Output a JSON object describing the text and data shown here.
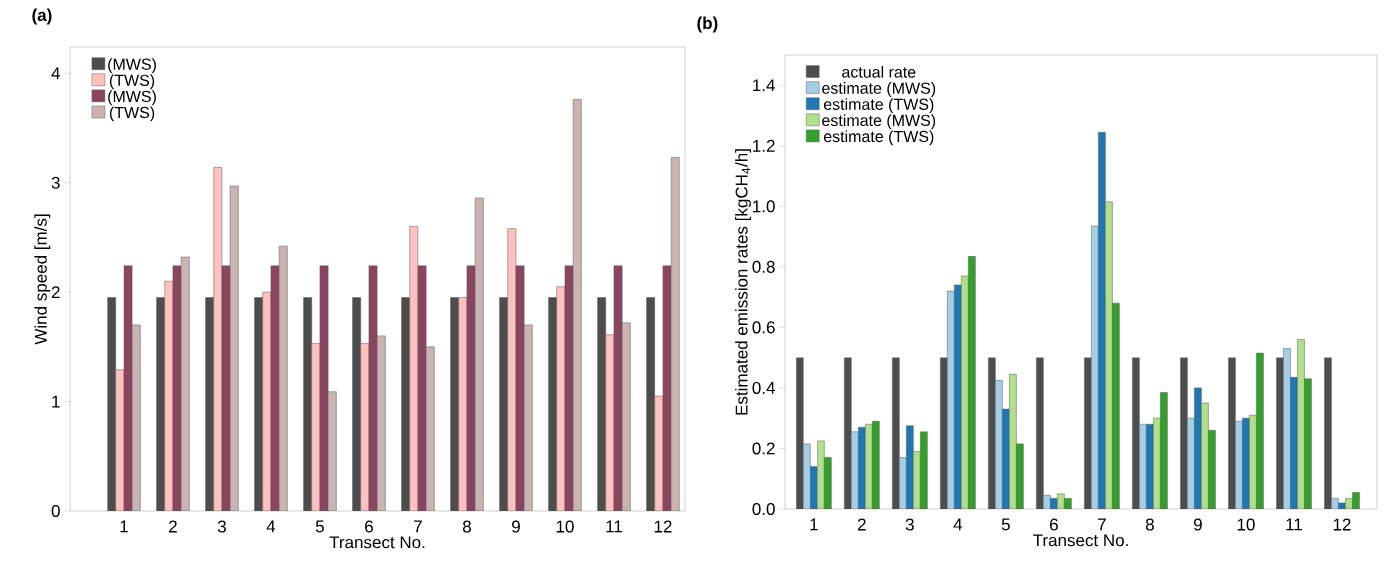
{
  "chart_data": [
    {
      "type": "bar",
      "title": "(a)",
      "xlabel": "Transect No.",
      "ylabel": "Wind speed [m/s]",
      "categories": [
        "1",
        "2",
        "3",
        "4",
        "5",
        "6",
        "7",
        "8",
        "9",
        "10",
        "11",
        "12"
      ],
      "series": [
        {
          "name": "(MWS)",
          "color": "#4d4d4d",
          "values": [
            1.95,
            1.95,
            1.95,
            1.95,
            1.95,
            1.95,
            1.95,
            1.95,
            1.95,
            1.95,
            1.95,
            1.95
          ]
        },
        {
          "name": "(TWS)",
          "color": "#ffc0c0",
          "values": [
            1.29,
            2.1,
            3.14,
            2.0,
            1.53,
            1.53,
            2.6,
            1.95,
            2.58,
            2.05,
            1.61,
            1.05
          ]
        },
        {
          "name": "(MWS)",
          "color": "#8b4560",
          "values": [
            2.24,
            2.24,
            2.24,
            2.24,
            2.24,
            2.24,
            2.24,
            2.24,
            2.24,
            2.24,
            2.24,
            2.24
          ]
        },
        {
          "name": "(TWS)",
          "color": "#c9b3b3",
          "values": [
            1.7,
            2.32,
            2.97,
            2.42,
            1.09,
            1.6,
            1.5,
            2.86,
            1.7,
            3.76,
            1.72,
            3.23
          ]
        }
      ],
      "ylim": [
        0,
        4.24
      ],
      "yticks": [
        0,
        1,
        2,
        3,
        4
      ],
      "legend": "top left"
    },
    {
      "type": "bar",
      "title": "(b)",
      "xlabel": "Transect No.",
      "ylabel": "Estimated emission rates [kgCH$_{4}$/h]",
      "categories": [
        "1",
        "2",
        "3",
        "4",
        "5",
        "6",
        "7",
        "8",
        "9",
        "10",
        "11",
        "12"
      ],
      "series": [
        {
          "name": "actual rate",
          "color": "#4d4d4d",
          "values": [
            0.5,
            0.5,
            0.5,
            0.5,
            0.5,
            0.5,
            0.5,
            0.5,
            0.5,
            0.5,
            0.5,
            0.5
          ]
        },
        {
          "name": "estimate (MWS)",
          "color": "#a6cee3",
          "values": [
            0.215,
            0.255,
            0.17,
            0.72,
            0.425,
            0.045,
            0.935,
            0.28,
            0.3,
            0.29,
            0.53,
            0.035
          ]
        },
        {
          "name": "estimate (TWS)",
          "color": "#1f78b4",
          "values": [
            0.14,
            0.27,
            0.275,
            0.74,
            0.33,
            0.035,
            1.245,
            0.28,
            0.4,
            0.3,
            0.435,
            0.02
          ]
        },
        {
          "name": "estimate (MWS)",
          "color": "#b2df8a",
          "values": [
            0.225,
            0.28,
            0.19,
            0.77,
            0.445,
            0.05,
            1.015,
            0.3,
            0.35,
            0.31,
            0.56,
            0.035
          ]
        },
        {
          "name": "estimate (TWS)",
          "color": "#33a02c",
          "values": [
            0.17,
            0.29,
            0.255,
            0.835,
            0.215,
            0.035,
            0.68,
            0.385,
            0.26,
            0.515,
            0.43,
            0.055
          ]
        }
      ],
      "ylim": [
        0,
        1.5
      ],
      "yticks": [
        {
          "value": 0,
          "label": "0.0"
        },
        {
          "value": 0.2,
          "label": "0.2"
        },
        {
          "value": 0.4,
          "label": "0.4"
        },
        {
          "value": 0.6,
          "label": "0.6"
        },
        {
          "value": 0.8,
          "label": "0.8"
        },
        {
          "value": 1.0,
          "label": "1.0"
        },
        {
          "value": 1.2,
          "label": "1.2"
        },
        {
          "value": 1.4,
          "label": "1.4"
        }
      ],
      "legend": "top left"
    }
  ]
}
